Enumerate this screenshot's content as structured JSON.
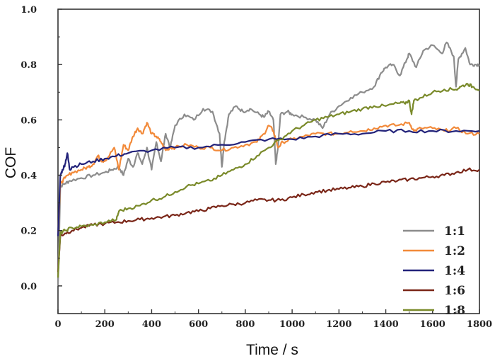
{
  "chart_data": {
    "type": "line",
    "xlabel": "Time / s",
    "ylabel": "COF",
    "xlim": [
      0,
      1800
    ],
    "ylim": [
      -0.1,
      1.0
    ],
    "xticks": [
      0,
      200,
      400,
      600,
      800,
      1000,
      1200,
      1400,
      1600,
      1800
    ],
    "yticks": [
      0.0,
      0.2,
      0.4,
      0.6,
      0.8,
      1.0
    ],
    "ytick_labels": [
      "0.0",
      "0.2",
      "0.4",
      "0.6",
      "0.8",
      "1.0"
    ],
    "grid": false,
    "legend_position": "bottom-right",
    "series": [
      {
        "name": "1:1",
        "color": "#8c8c8c",
        "x": [
          0,
          10,
          30,
          50,
          100,
          150,
          200,
          230,
          260,
          280,
          300,
          320,
          340,
          360,
          380,
          400,
          420,
          440,
          460,
          480,
          500,
          540,
          580,
          620,
          660,
          690,
          700,
          710,
          730,
          760,
          790,
          820,
          860,
          880,
          900,
          920,
          930,
          940,
          950,
          980,
          1000,
          1050,
          1100,
          1130,
          1160,
          1200,
          1250,
          1300,
          1350,
          1380,
          1400,
          1430,
          1460,
          1490,
          1500,
          1530,
          1560,
          1600,
          1640,
          1660,
          1690,
          1700,
          1710,
          1740,
          1760,
          1780,
          1800
        ],
        "y": [
          0.0,
          0.36,
          0.37,
          0.38,
          0.39,
          0.4,
          0.41,
          0.42,
          0.43,
          0.4,
          0.46,
          0.43,
          0.48,
          0.44,
          0.5,
          0.42,
          0.52,
          0.45,
          0.55,
          0.5,
          0.58,
          0.62,
          0.6,
          0.64,
          0.63,
          0.55,
          0.43,
          0.52,
          0.62,
          0.65,
          0.63,
          0.64,
          0.62,
          0.61,
          0.63,
          0.6,
          0.44,
          0.5,
          0.62,
          0.63,
          0.62,
          0.61,
          0.6,
          0.57,
          0.62,
          0.65,
          0.68,
          0.7,
          0.72,
          0.77,
          0.79,
          0.8,
          0.76,
          0.82,
          0.84,
          0.79,
          0.85,
          0.87,
          0.84,
          0.88,
          0.83,
          0.72,
          0.82,
          0.86,
          0.8,
          0.8,
          0.8
        ]
      },
      {
        "name": "1:2",
        "color": "#f28a3a",
        "x": [
          0,
          10,
          30,
          60,
          100,
          130,
          150,
          170,
          190,
          210,
          240,
          260,
          280,
          300,
          320,
          340,
          360,
          380,
          400,
          420,
          440,
          460,
          480,
          500,
          550,
          600,
          650,
          700,
          750,
          800,
          850,
          880,
          900,
          920,
          940,
          960,
          1000,
          1050,
          1100,
          1150,
          1200,
          1250,
          1300,
          1350,
          1400,
          1450,
          1500,
          1520,
          1550,
          1600,
          1650,
          1700,
          1750,
          1800
        ],
        "y": [
          0.18,
          0.37,
          0.39,
          0.41,
          0.42,
          0.43,
          0.44,
          0.47,
          0.45,
          0.46,
          0.5,
          0.42,
          0.51,
          0.49,
          0.54,
          0.57,
          0.55,
          0.59,
          0.55,
          0.54,
          0.52,
          0.49,
          0.5,
          0.5,
          0.51,
          0.5,
          0.5,
          0.49,
          0.5,
          0.51,
          0.52,
          0.55,
          0.58,
          0.56,
          0.5,
          0.52,
          0.53,
          0.54,
          0.55,
          0.55,
          0.55,
          0.56,
          0.56,
          0.57,
          0.58,
          0.58,
          0.59,
          0.56,
          0.57,
          0.57,
          0.56,
          0.57,
          0.55,
          0.55
        ]
      },
      {
        "name": "1:4",
        "color": "#23237a",
        "x": [
          0,
          10,
          20,
          30,
          40,
          50,
          60,
          100,
          150,
          200,
          250,
          300,
          400,
          500,
          600,
          700,
          800,
          900,
          1000,
          1100,
          1200,
          1300,
          1400,
          1500,
          1600,
          1700,
          1800
        ],
        "y": [
          0.18,
          0.4,
          0.42,
          0.44,
          0.48,
          0.42,
          0.43,
          0.44,
          0.45,
          0.46,
          0.47,
          0.48,
          0.49,
          0.5,
          0.5,
          0.51,
          0.52,
          0.53,
          0.53,
          0.54,
          0.55,
          0.55,
          0.56,
          0.56,
          0.56,
          0.56,
          0.56
        ]
      },
      {
        "name": "1:6",
        "color": "#7a2618",
        "x": [
          0,
          10,
          30,
          60,
          100,
          150,
          200,
          250,
          300,
          350,
          400,
          450,
          500,
          550,
          600,
          650,
          700,
          750,
          800,
          850,
          900,
          950,
          1000,
          1050,
          1100,
          1150,
          1200,
          1250,
          1300,
          1350,
          1400,
          1450,
          1500,
          1550,
          1600,
          1650,
          1700,
          1750,
          1800
        ],
        "y": [
          0.05,
          0.18,
          0.19,
          0.2,
          0.21,
          0.22,
          0.225,
          0.23,
          0.235,
          0.24,
          0.245,
          0.25,
          0.255,
          0.265,
          0.27,
          0.28,
          0.29,
          0.295,
          0.3,
          0.31,
          0.31,
          0.31,
          0.32,
          0.33,
          0.34,
          0.345,
          0.35,
          0.355,
          0.36,
          0.37,
          0.375,
          0.38,
          0.385,
          0.39,
          0.395,
          0.4,
          0.41,
          0.42,
          0.42
        ]
      },
      {
        "name": "1:8",
        "color": "#7a8a2a",
        "x": [
          0,
          10,
          30,
          60,
          100,
          150,
          200,
          250,
          260,
          300,
          350,
          400,
          450,
          500,
          550,
          600,
          650,
          700,
          750,
          800,
          850,
          900,
          950,
          1000,
          1050,
          1100,
          1150,
          1200,
          1250,
          1300,
          1350,
          1400,
          1450,
          1480,
          1500,
          1510,
          1520,
          1550,
          1600,
          1650,
          1700,
          1720,
          1750,
          1770,
          1800
        ],
        "y": [
          0.03,
          0.19,
          0.2,
          0.21,
          0.215,
          0.22,
          0.23,
          0.24,
          0.27,
          0.28,
          0.29,
          0.31,
          0.32,
          0.34,
          0.36,
          0.37,
          0.38,
          0.4,
          0.42,
          0.44,
          0.47,
          0.5,
          0.53,
          0.56,
          0.58,
          0.6,
          0.61,
          0.62,
          0.63,
          0.64,
          0.65,
          0.65,
          0.66,
          0.66,
          0.67,
          0.62,
          0.67,
          0.68,
          0.7,
          0.71,
          0.71,
          0.72,
          0.73,
          0.72,
          0.71
        ]
      }
    ]
  }
}
